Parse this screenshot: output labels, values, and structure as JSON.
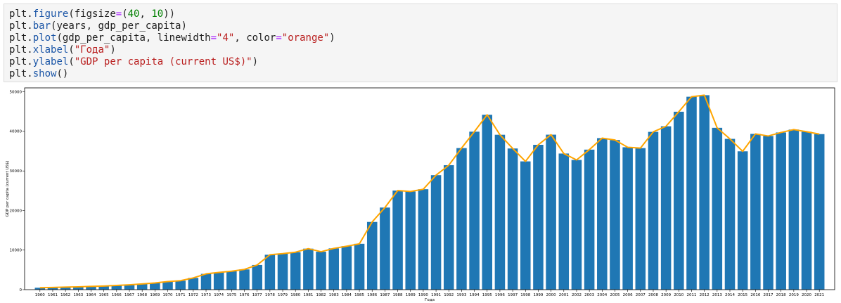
{
  "code": {
    "lines": [
      [
        {
          "t": "plt",
          "c": "plain"
        },
        {
          "t": ".",
          "c": "plain"
        },
        {
          "t": "figure",
          "c": "attr"
        },
        {
          "t": "(figsize",
          "c": "plain"
        },
        {
          "t": "=",
          "c": "eq"
        },
        {
          "t": "(",
          "c": "plain"
        },
        {
          "t": "40",
          "c": "num"
        },
        {
          "t": ", ",
          "c": "plain"
        },
        {
          "t": "10",
          "c": "num"
        },
        {
          "t": "))",
          "c": "plain"
        }
      ],
      [
        {
          "t": "plt",
          "c": "plain"
        },
        {
          "t": ".",
          "c": "plain"
        },
        {
          "t": "bar",
          "c": "attr"
        },
        {
          "t": "(years, gdp_per_capita)",
          "c": "plain"
        }
      ],
      [
        {
          "t": "plt",
          "c": "plain"
        },
        {
          "t": ".",
          "c": "plain"
        },
        {
          "t": "plot",
          "c": "attr"
        },
        {
          "t": "(gdp_per_capita, linewidth",
          "c": "plain"
        },
        {
          "t": "=",
          "c": "eq"
        },
        {
          "t": "\"4\"",
          "c": "str"
        },
        {
          "t": ", color",
          "c": "plain"
        },
        {
          "t": "=",
          "c": "eq"
        },
        {
          "t": "\"orange\"",
          "c": "str"
        },
        {
          "t": ")",
          "c": "plain"
        }
      ],
      [
        {
          "t": "plt",
          "c": "plain"
        },
        {
          "t": ".",
          "c": "plain"
        },
        {
          "t": "xlabel",
          "c": "attr"
        },
        {
          "t": "(",
          "c": "plain"
        },
        {
          "t": "\"Года\"",
          "c": "str"
        },
        {
          "t": ")",
          "c": "plain"
        }
      ],
      [
        {
          "t": "plt",
          "c": "plain"
        },
        {
          "t": ".",
          "c": "plain"
        },
        {
          "t": "ylabel",
          "c": "attr"
        },
        {
          "t": "(",
          "c": "plain"
        },
        {
          "t": "\"GDP per capita (current US$)\"",
          "c": "str"
        },
        {
          "t": ")",
          "c": "plain"
        }
      ],
      [
        {
          "t": "plt",
          "c": "plain"
        },
        {
          "t": ".",
          "c": "plain"
        },
        {
          "t": "show",
          "c": "attr"
        },
        {
          "t": "()",
          "c": "plain"
        }
      ]
    ]
  },
  "chart_data": {
    "type": "bar",
    "xlabel": "Года",
    "ylabel": "GDP per capita (current US$)",
    "ylim": [
      0,
      51000
    ],
    "yticks": [
      0,
      10000,
      20000,
      30000,
      40000,
      50000
    ],
    "grid": false,
    "bar_color": "#1f77b4",
    "line_color": "#ffa500",
    "categories": [
      "1960",
      "1961",
      "1962",
      "1963",
      "1964",
      "1965",
      "1966",
      "1967",
      "1968",
      "1969",
      "1970",
      "1971",
      "1972",
      "1973",
      "1974",
      "1975",
      "1976",
      "1977",
      "1978",
      "1979",
      "1980",
      "1981",
      "1982",
      "1983",
      "1984",
      "1985",
      "1986",
      "1987",
      "1988",
      "1989",
      "1990",
      "1991",
      "1992",
      "1993",
      "1994",
      "1995",
      "1996",
      "1997",
      "1998",
      "1999",
      "2000",
      "2001",
      "2002",
      "2003",
      "2004",
      "2005",
      "2006",
      "2007",
      "2008",
      "2009",
      "2010",
      "2011",
      "2012",
      "2013",
      "2014",
      "2015",
      "2016",
      "2017",
      "2018",
      "2019",
      "2020",
      "2021"
    ],
    "values": [
      480,
      560,
      640,
      720,
      830,
      920,
      1060,
      1230,
      1450,
      1690,
      2040,
      2270,
      2970,
      3990,
      4350,
      4660,
      5110,
      6230,
      8820,
      9100,
      9470,
      10360,
      9580,
      10430,
      10980,
      11580,
      17110,
      20750,
      25050,
      24810,
      25380,
      28930,
      31460,
      35780,
      39930,
      44200,
      39150,
      35680,
      32420,
      36610,
      39170,
      34400,
      32780,
      35390,
      38300,
      37820,
      35990,
      35780,
      39880,
      41290,
      44970,
      48760,
      49150,
      40900,
      38110,
      34960,
      39370,
      38840,
      39730,
      40460,
      39920,
      39310
    ],
    "series": [
      {
        "type": "bar"
      },
      {
        "type": "line"
      }
    ]
  }
}
